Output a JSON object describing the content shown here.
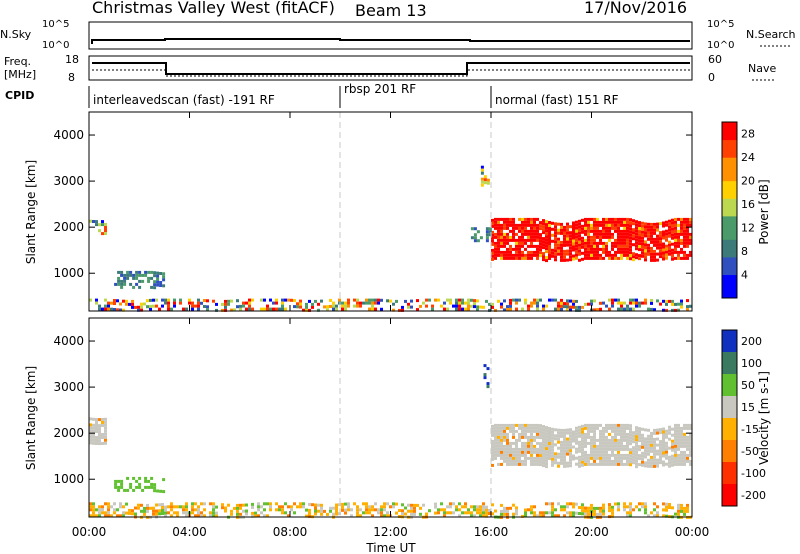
{
  "header": {
    "title": "Christmas Valley West (fitACF)",
    "beam": "Beam 13",
    "date": "17/Nov/2016"
  },
  "aux": {
    "nsky_label": "N.Sky",
    "nsearch_label": "N.Search",
    "nsky_ticks": [
      "10^5",
      "10^0"
    ],
    "nsearch_ticks": [
      "10^5",
      "10^0"
    ],
    "freq_label_line1": "Freq.",
    "freq_label_line2": "[MHz]",
    "freq_ticks": [
      "18",
      "8"
    ],
    "nave_label": "Nave",
    "nave_ticks": [
      "60",
      "0"
    ],
    "cpid_label": "CPID"
  },
  "cpid_segments": [
    {
      "label": "interleavedscan (fast) -191 RF",
      "start_h": 0
    },
    {
      "label": "rbsp 201 RF",
      "start_h": 10
    },
    {
      "label": "normal (fast) 151 RF",
      "start_h": 16
    }
  ],
  "x_axis": {
    "label": "Time UT",
    "ticks": [
      "00:00",
      "04:00",
      "08:00",
      "12:00",
      "16:00",
      "20:00",
      "00:00"
    ]
  },
  "chart_data": [
    {
      "type": "heatmap",
      "name": "Power",
      "ylabel": "Slant Range [km]",
      "yticks": [
        "4000",
        "3000",
        "2000",
        "1000"
      ],
      "ylim": [
        180,
        4500
      ],
      "xlim_hours": [
        0,
        24
      ],
      "colorbar_label": "Power [dB]",
      "colorbar_ticks": [
        "28",
        "24",
        "20",
        "16",
        "12",
        "8",
        "4"
      ],
      "colorbar_range": [
        0,
        30
      ],
      "color_stops": [
        "#0000ff",
        "#3050c0",
        "#3d7a7a",
        "#4a9a6a",
        "#bcd850",
        "#ffd000",
        "#ff9000",
        "#ff4000",
        "#ff0000"
      ],
      "echo_regions": [
        {
          "hours": [
            16.0,
            23.9
          ],
          "range_km": [
            1300,
            2200
          ],
          "level": "high"
        },
        {
          "hours": [
            0.0,
            0.6
          ],
          "range_km": [
            1800,
            2200
          ],
          "level": "mixed"
        },
        {
          "hours": [
            1.0,
            3.0
          ],
          "range_km": [
            700,
            1050
          ],
          "level": "low"
        },
        {
          "hours": [
            15.2,
            16.0
          ],
          "range_km": [
            1700,
            2000
          ],
          "level": "low"
        },
        {
          "hours": [
            15.6,
            15.9
          ],
          "range_km": [
            2900,
            3400
          ],
          "level": "mixed"
        },
        {
          "hours": [
            0.0,
            24.0
          ],
          "range_km": [
            200,
            450
          ],
          "level": "mixed"
        }
      ]
    },
    {
      "type": "heatmap",
      "name": "Velocity",
      "ylabel": "Slant Range [km]",
      "yticks": [
        "4000",
        "3000",
        "2000",
        "1000"
      ],
      "ylim": [
        180,
        4500
      ],
      "xlim_hours": [
        0,
        24
      ],
      "colorbar_label": "Velocity [m s-1]",
      "colorbar_ticks": [
        "200",
        "100",
        "50",
        "15",
        "-15",
        "-50",
        "-100",
        "-200"
      ],
      "colorbar_colors": [
        "#1030c0",
        "#3a7a60",
        "#60c030",
        "#c8c8c0",
        "#ffb000",
        "#ff8000",
        "#ff3000",
        "#ff0000"
      ],
      "echo_regions": [
        {
          "hours": [
            16.0,
            23.9
          ],
          "range_km": [
            1300,
            2200
          ],
          "class": "ground"
        },
        {
          "hours": [
            0.0,
            0.6
          ],
          "range_km": [
            1800,
            2400
          ],
          "class": "ground"
        },
        {
          "hours": [
            1.0,
            3.0
          ],
          "range_km": [
            750,
            1050
          ],
          "class": "positive"
        },
        {
          "hours": [
            15.7,
            15.9
          ],
          "range_km": [
            3000,
            3500
          ],
          "class": "fast_positive"
        },
        {
          "hours": [
            0.0,
            24.0
          ],
          "range_km": [
            200,
            500
          ],
          "class": "mixed"
        }
      ]
    }
  ]
}
